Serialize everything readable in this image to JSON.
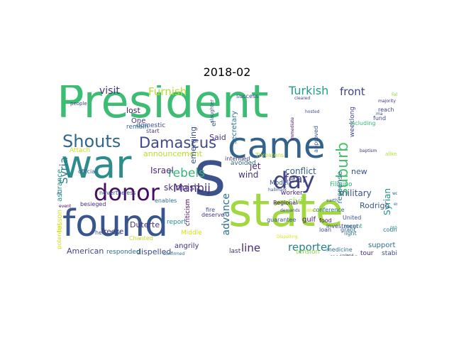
{
  "title": "2018-02",
  "words": [
    {
      "text": "President",
      "color": "#3dbc74"
    },
    {
      "text": "state",
      "color": "#a2d83f"
    },
    {
      "text": "s",
      "color": "#3b528b"
    },
    {
      "text": "war",
      "color": "#2e8c8a"
    },
    {
      "text": "found",
      "color": "#39568c"
    },
    {
      "text": "came",
      "color": "#33628d"
    },
    {
      "text": "day",
      "color": "#404387"
    },
    {
      "text": "donor",
      "color": "#440f5e"
    },
    {
      "text": "Shouts",
      "color": "#31668e"
    },
    {
      "text": "Damascus",
      "color": "#3f4889"
    },
    {
      "text": "suburb",
      "color": "#4ac16d"
    },
    {
      "text": "rebels",
      "color": "#35b779"
    },
    {
      "text": "fear",
      "color": "#433e85"
    },
    {
      "text": "Manbij",
      "color": "#472c7a"
    },
    {
      "text": "advance",
      "color": "#2c718e"
    },
    {
      "text": "line",
      "color": "#482475"
    },
    {
      "text": "reporter",
      "color": "#26818e"
    },
    {
      "text": "Turkish",
      "color": "#1f9e89"
    },
    {
      "text": "front",
      "color": "#414487"
    },
    {
      "text": "visit",
      "color": "#453781"
    },
    {
      "text": "Furnish",
      "color": "#b5de2b"
    },
    {
      "text": "Syria",
      "color": "#2a788e"
    },
    {
      "text": "Syrian",
      "color": "#21918c"
    },
    {
      "text": "conflict",
      "color": "#355f8d"
    },
    {
      "text": "military",
      "color": "#3b528b"
    },
    {
      "text": "Israel",
      "color": "#482878"
    },
    {
      "text": "skirmish",
      "color": "#46327e"
    },
    {
      "text": "American",
      "color": "#414487"
    },
    {
      "text": "dispelled",
      "color": "#3e4a89"
    },
    {
      "text": "support",
      "color": "#2d708e"
    },
    {
      "text": "Rodrigo",
      "color": "#3a548c"
    },
    {
      "text": "Duterte",
      "color": "#463480"
    },
    {
      "text": "wind",
      "color": "#46307e"
    },
    {
      "text": "jet",
      "color": "#482677"
    },
    {
      "text": "civil",
      "color": "#8fd744"
    },
    {
      "text": "new",
      "color": "#39558c"
    },
    {
      "text": "lost",
      "color": "#481769"
    },
    {
      "text": "One",
      "color": "#45337d"
    },
    {
      "text": "lesson",
      "color": "#d8e219"
    },
    {
      "text": "announcement",
      "color": "#b8de29"
    },
    {
      "text": "asurance",
      "color": "#228d8d"
    },
    {
      "text": "emerging",
      "color": "#3b518b"
    },
    {
      "text": "secretary",
      "color": "#2a768e"
    },
    {
      "text": "criticism",
      "color": "#440154"
    },
    {
      "text": "freeze",
      "color": "#46327e"
    },
    {
      "text": "angrily",
      "color": "#472f7d"
    },
    {
      "text": "last",
      "color": "#46307e"
    },
    {
      "text": "responded",
      "color": "#2c738e"
    },
    {
      "text": "tension",
      "color": "#8bd646"
    },
    {
      "text": "response",
      "color": "#31688e"
    },
    {
      "text": "domestic",
      "color": "#3c4f8a"
    },
    {
      "text": "remain",
      "color": "#2e6e8e"
    },
    {
      "text": "Attach",
      "color": "#cde11d"
    },
    {
      "text": "Filipino",
      "color": "#2fb47c"
    },
    {
      "text": "weeklong",
      "color": "#404688"
    },
    {
      "text": "avoided",
      "color": "#31688e"
    },
    {
      "text": "worker",
      "color": "#482173"
    },
    {
      "text": "tour",
      "color": "#481f70"
    },
    {
      "text": "stability",
      "color": "#3e4c8a"
    },
    {
      "text": "Model",
      "color": "#3b528b"
    },
    {
      "text": "Middle",
      "color": "#d5e21a"
    },
    {
      "text": "report",
      "color": "#228c8d"
    },
    {
      "text": "start",
      "color": "#443a83"
    },
    {
      "text": "enables",
      "color": "#2c728e"
    },
    {
      "text": "deserve",
      "color": "#453781"
    },
    {
      "text": "gulf",
      "color": "#481b6d"
    },
    {
      "text": "food",
      "color": "#46085c"
    },
    {
      "text": "United",
      "color": "#3b528b"
    },
    {
      "text": "grant",
      "color": "#365c8d"
    },
    {
      "text": "light",
      "color": "#2a788e"
    },
    {
      "text": "recent",
      "color": "#1fa287"
    },
    {
      "text": "country",
      "color": "#2a788e"
    },
    {
      "text": "nevertheless",
      "color": "#3e4989"
    },
    {
      "text": "besieged",
      "color": "#472d7b"
    },
    {
      "text": "official",
      "color": "#355f8d"
    },
    {
      "text": "fire",
      "color": "#3c4f8a"
    },
    {
      "text": "Regional",
      "color": "#471063"
    },
    {
      "text": "guarantee",
      "color": "#3a548c"
    },
    {
      "text": "conference",
      "color": "#2f6b8e"
    },
    {
      "text": "loan",
      "color": "#3e4989"
    },
    {
      "text": "medicine",
      "color": "#2b748e"
    },
    {
      "text": "resolution",
      "color": "#3e4a89"
    },
    {
      "text": "hell",
      "color": "#39558c"
    },
    {
      "text": "investment",
      "color": "#404588"
    },
    {
      "text": "including",
      "color": "#37b878"
    },
    {
      "text": "approved",
      "color": "#3b528b"
    },
    {
      "text": "intended",
      "color": "#433e85"
    },
    {
      "text": "success",
      "color": "#3e4c8a"
    },
    {
      "text": "slaughter",
      "color": "#38588c"
    },
    {
      "text": "Threatens",
      "color": "#b4de2c"
    },
    {
      "text": "reach",
      "color": "#3f4788"
    },
    {
      "text": "fund",
      "color": "#3e4989"
    },
    {
      "text": "alike",
      "color": "#b5de2b"
    },
    {
      "text": "el",
      "color": "#365d8d"
    },
    {
      "text": "Chanted",
      "color": "#c2df23"
    },
    {
      "text": "potential",
      "color": "#d2e21b"
    },
    {
      "text": "total",
      "color": "#2f6c8e"
    },
    {
      "text": "people",
      "color": "#423f85"
    },
    {
      "text": "event",
      "color": "#46085c"
    },
    {
      "text": "confirmed",
      "color": "#2e6f8e"
    },
    {
      "text": "earth",
      "color": "#39568c"
    },
    {
      "text": "immediate",
      "color": "#471365"
    },
    {
      "text": "ma",
      "color": "#3c4f8a"
    },
    {
      "text": "Ã¢",
      "color": "#31688e"
    },
    {
      "text": "Said",
      "color": "#46307e"
    },
    {
      "text": "hallmark",
      "color": "#3b528b"
    },
    {
      "text": "majority",
      "color": "#46337f"
    },
    {
      "text": "worrying",
      "color": "#2e6e8e"
    },
    {
      "text": "hosted",
      "color": "#3b528b"
    },
    {
      "text": "Dispelling",
      "color": "#dde318"
    },
    {
      "text": "Falcon",
      "color": "#8fd744"
    },
    {
      "text": "proclaimed",
      "color": "#26828e"
    },
    {
      "text": "emigrant",
      "color": "#31678e"
    },
    {
      "text": "Lahad",
      "color": "#3e4c8a"
    },
    {
      "text": "cleared",
      "color": "#3f4788"
    },
    {
      "text": "demands",
      "color": "#3f4889"
    },
    {
      "text": "doxa",
      "color": "#d0e11c"
    },
    {
      "text": "baptism",
      "color": "#46327e"
    }
  ]
}
